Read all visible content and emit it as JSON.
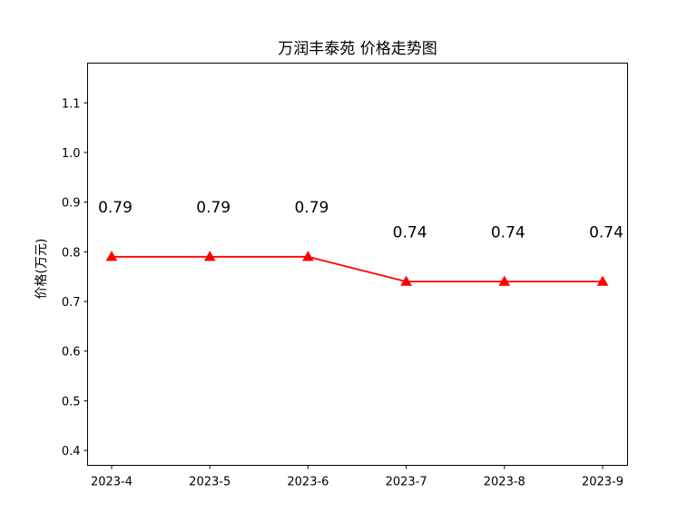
{
  "chart_data": {
    "type": "line",
    "title": "万润丰泰苑 价格走势图",
    "xlabel": "",
    "ylabel": "价格(万元)",
    "categories": [
      "2023-4",
      "2023-5",
      "2023-6",
      "2023-7",
      "2023-8",
      "2023-9"
    ],
    "series": [
      {
        "values": [
          0.79,
          0.79,
          0.79,
          0.74,
          0.74,
          0.74
        ],
        "color": "#ff0000",
        "marker": "triangle"
      }
    ],
    "data_labels": [
      "0.79",
      "0.79",
      "0.79",
      "0.74",
      "0.74",
      "0.74"
    ],
    "ylim": [
      0.37,
      1.18
    ],
    "yticks": [
      "0.4",
      "0.5",
      "0.6",
      "0.7",
      "0.8",
      "0.9",
      "1.0",
      "1.1"
    ],
    "grid": false,
    "legend": "none"
  }
}
